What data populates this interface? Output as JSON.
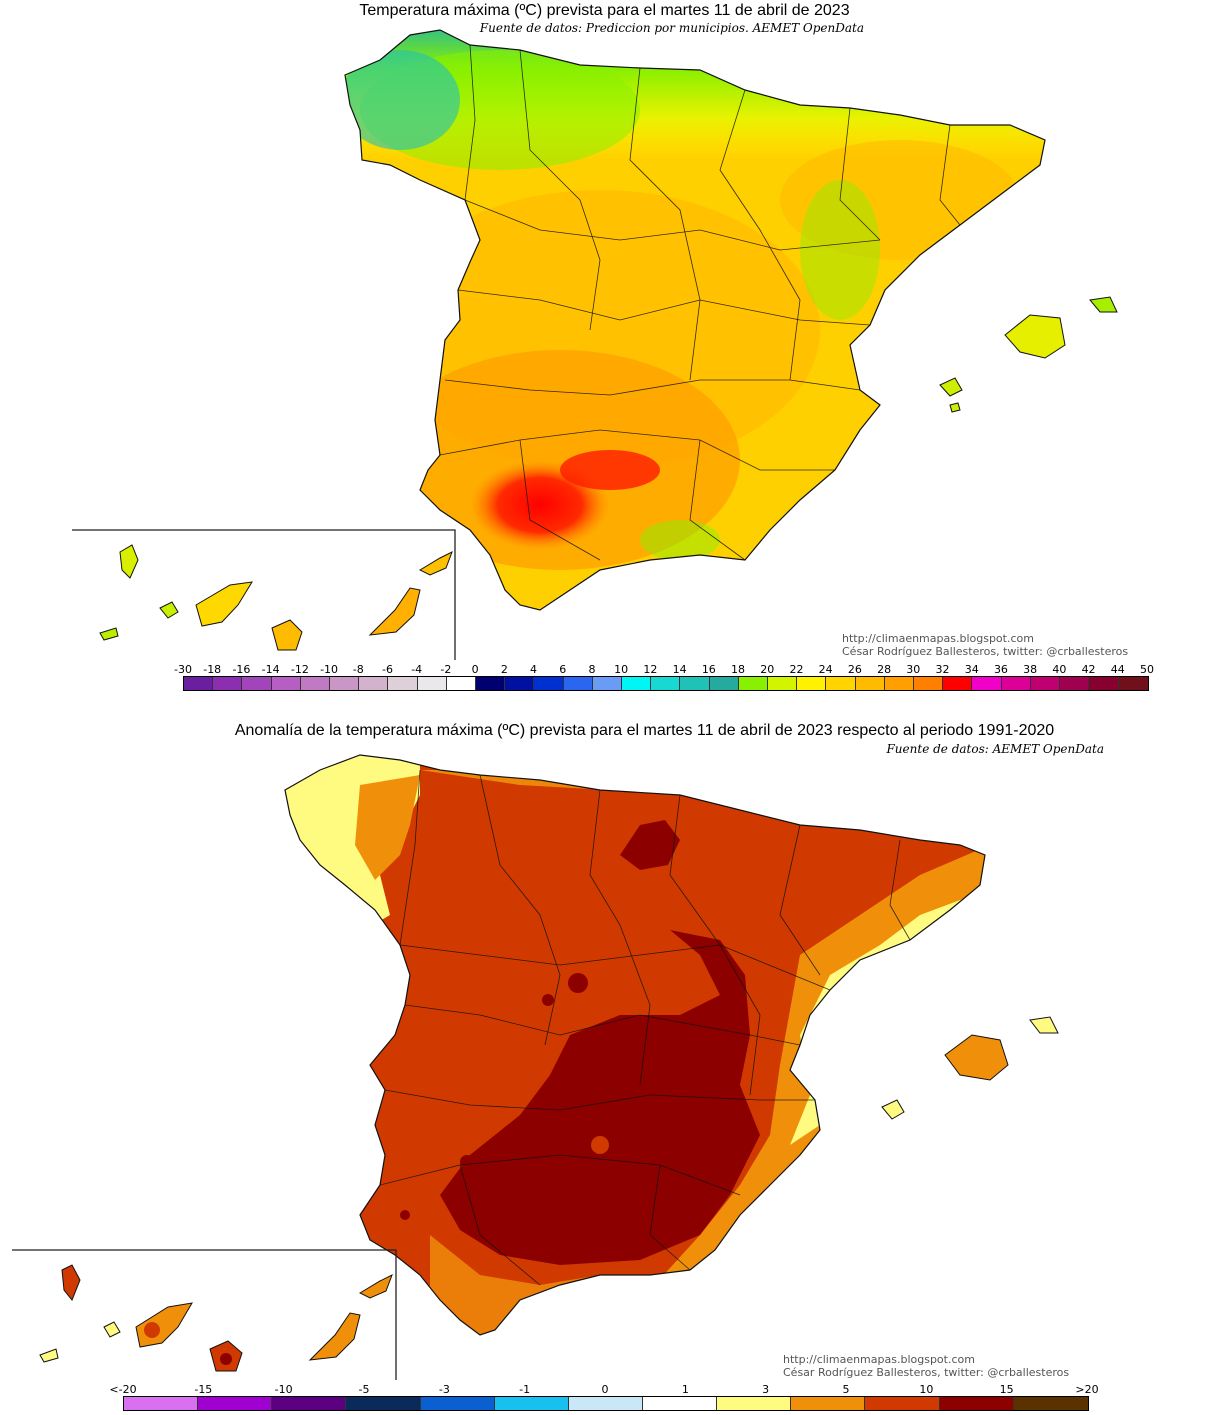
{
  "top": {
    "title": "Temperatura máxima (ºC) prevista para el martes 11 de abril de 2023",
    "source": "Fuente de datos: Prediccion por municipios. AEMET OpenData",
    "credit_url": "http://climaenmapas.blogspot.com",
    "credit_author": "César Rodríguez Ballesteros, twitter: @crballesteros",
    "legend_labels": [
      "-30",
      "-18",
      "-16",
      "-14",
      "-12",
      "-10",
      "-8",
      "-6",
      "-4",
      "-2",
      "0",
      "2",
      "4",
      "6",
      "8",
      "10",
      "12",
      "14",
      "16",
      "18",
      "20",
      "22",
      "24",
      "26",
      "28",
      "30",
      "32",
      "34",
      "36",
      "38",
      "40",
      "42",
      "44",
      "50"
    ],
    "legend_colors": [
      "#6a1fa0",
      "#8b2fb0",
      "#a245bb",
      "#b65fc2",
      "#c07ac4",
      "#c996c6",
      "#d2b2cd",
      "#ddd0d8",
      "#ebe8ec",
      "#ffffff",
      "#000070",
      "#0010a0",
      "#0030d0",
      "#2a66f0",
      "#6a9cf5",
      "#00f5f5",
      "#18d8d2",
      "#20c2b8",
      "#25aaa0",
      "#88f000",
      "#d2f400",
      "#fff200",
      "#ffd400",
      "#ffbb00",
      "#ffa000",
      "#ff7f00",
      "#ff0000",
      "#f000c8",
      "#dc0096",
      "#c00070",
      "#a00050",
      "#880030",
      "#70101a"
    ]
  },
  "bottom": {
    "title": "Anomalía de la temperatura máxima (ºC) prevista para el martes 11 de abril de 2023 respecto al periodo 1991-2020",
    "source": "Fuente de datos: AEMET OpenData",
    "credit_url": "http://climaenmapas.blogspot.com",
    "credit_author": "César Rodríguez Ballesteros, twitter: @crballesteros",
    "legend_labels": [
      "<-20",
      "-15",
      "-10",
      "-5",
      "-3",
      "-1",
      "0",
      "1",
      "3",
      "5",
      "10",
      "15",
      ">20"
    ],
    "legend_colors": [
      "#d870f0",
      "#a000d0",
      "#5a0080",
      "#0a2a5a",
      "#0a60d0",
      "#18c0f0",
      "#c8e8f8",
      "#ffffff",
      "#fffa80",
      "#f0900a",
      "#d03a00",
      "#8c0000",
      "#5a3200"
    ]
  }
}
